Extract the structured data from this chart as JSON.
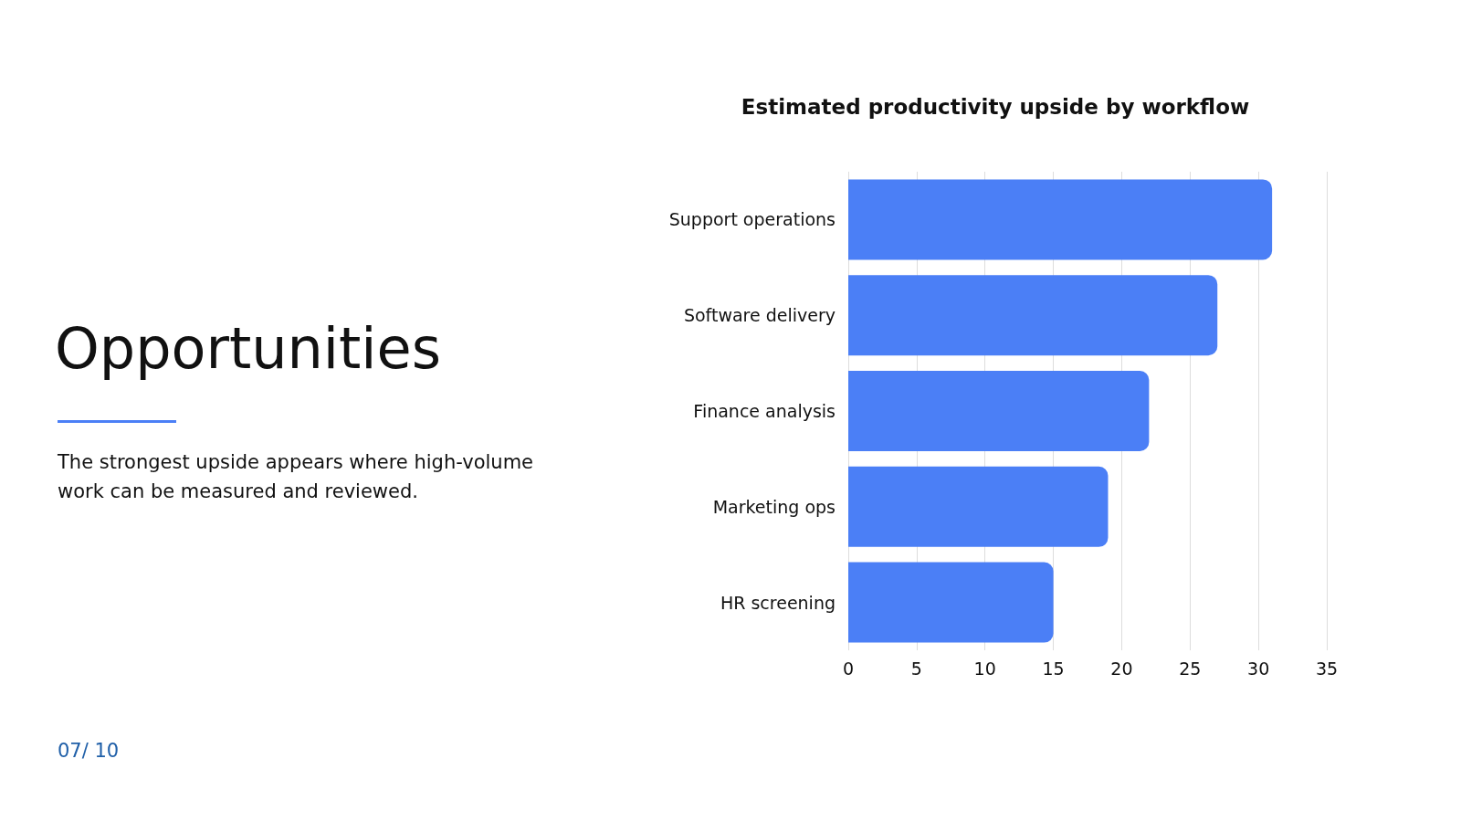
{
  "chart_data": {
    "type": "bar",
    "orientation": "horizontal",
    "title": "Estimated productivity upside by workflow",
    "categories": [
      "Support operations",
      "Software delivery",
      "Finance analysis",
      "Marketing ops",
      "HR screening"
    ],
    "values": [
      31,
      27,
      22,
      19,
      15
    ],
    "color": "#4b7ff6",
    "xlim": [
      0,
      35
    ],
    "xticks": [
      0,
      5,
      10,
      15,
      20,
      25,
      30,
      35
    ],
    "grid": "x",
    "annotations": [
      "Opportunities",
      "The strongest upside appears where high-volume work can be measured and reviewed.",
      "07/ 10"
    ]
  }
}
